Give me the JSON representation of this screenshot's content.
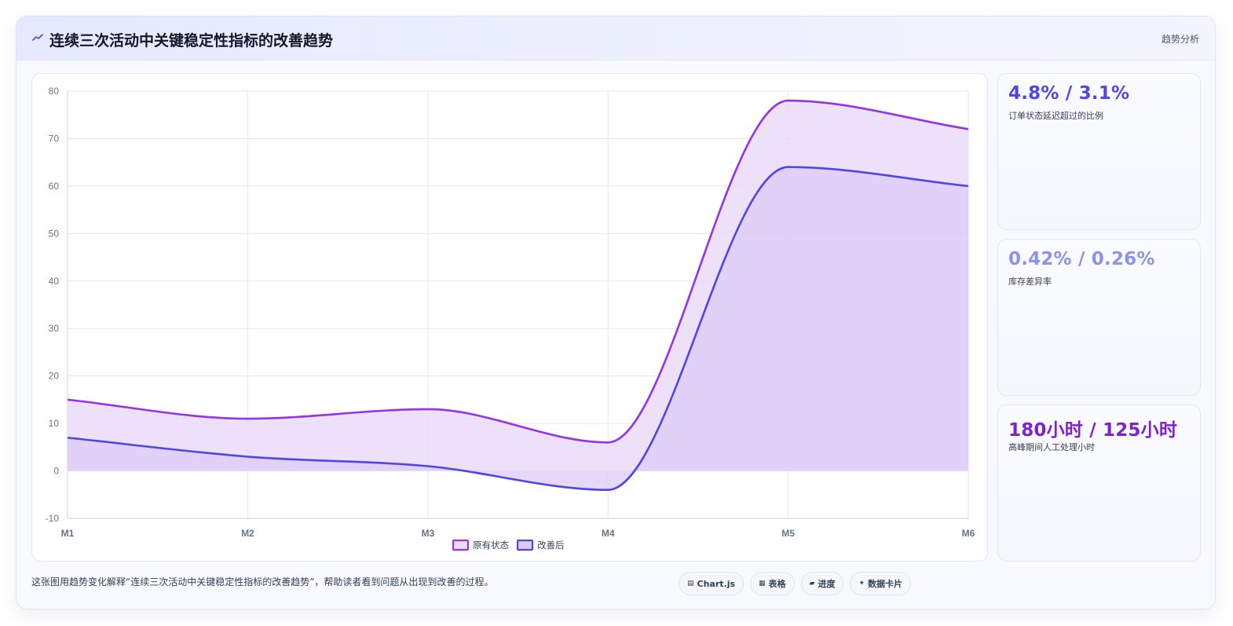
{
  "header": {
    "title": "连续三次活动中关键稳定性指标的改善趋势",
    "tag": "趋势分析"
  },
  "chart_data": {
    "type": "area",
    "x": [
      "M1",
      "M2",
      "M3",
      "M4",
      "M5",
      "M6"
    ],
    "ylim": [
      -10,
      80
    ],
    "yticks": [
      -10,
      0,
      10,
      20,
      30,
      40,
      50,
      60,
      70,
      80
    ],
    "grid": true,
    "legend_position": "bottom-center",
    "series": [
      {
        "name": "原有状态",
        "values": [
          15,
          11,
          13,
          6,
          78,
          72
        ],
        "color": "#9333ea",
        "fill": "#eadcf8"
      },
      {
        "name": "改善后",
        "values": [
          7,
          3,
          1,
          -4,
          64,
          60
        ],
        "color": "#4f46e5",
        "fill": "#dccbf7"
      }
    ]
  },
  "kpis": [
    {
      "value": "4.8% / 3.1%",
      "label": "订单状态延迟超过的比例",
      "color": "#4f46e5"
    },
    {
      "value": "0.42% / 0.26%",
      "label": "库存差异率",
      "color": "#8b93ea"
    },
    {
      "value": "180小时 / 125小时",
      "label": "高峰期间人工处理小时",
      "color": "#7e22ce"
    }
  ],
  "footnote": "这张图用趋势变化解释“连续三次活动中关键稳定性指标的改善趋势”，帮助读者看到问题从出现到改善的过程。",
  "chips": [
    {
      "icon": "chart-icon",
      "glyph": "▤",
      "label": "Chart.js"
    },
    {
      "icon": "table-icon",
      "glyph": "▦",
      "label": "表格"
    },
    {
      "icon": "progress-icon",
      "glyph": "▰",
      "label": "进度"
    },
    {
      "icon": "sparkle-icon",
      "glyph": "✦",
      "label": "数据卡片"
    }
  ]
}
